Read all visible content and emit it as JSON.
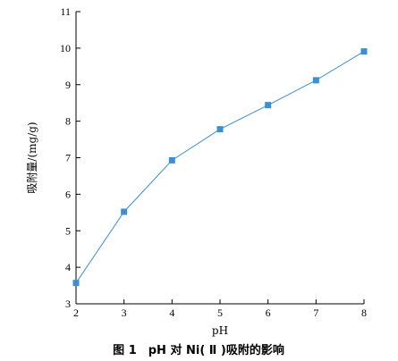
{
  "chart_data": {
    "type": "line",
    "caption": "图 1　pH 对 Ni( Ⅱ )吸附的影响",
    "xlabel": "pH",
    "ylabel": "吸附量/(mg/g)",
    "xlim": [
      2,
      8
    ],
    "ylim": [
      3,
      11
    ],
    "xticks": [
      2,
      3,
      4,
      5,
      6,
      7,
      8
    ],
    "yticks": [
      3,
      4,
      5,
      6,
      7,
      8,
      9,
      10,
      11
    ],
    "grid": false,
    "legend": "none",
    "series": [
      {
        "x": [
          2,
          3,
          4,
          5,
          6,
          7,
          8
        ],
        "values": [
          3.57,
          5.52,
          6.93,
          7.78,
          8.44,
          9.12,
          9.91
        ],
        "color": "#3b8fd4",
        "marker": "square"
      }
    ]
  }
}
